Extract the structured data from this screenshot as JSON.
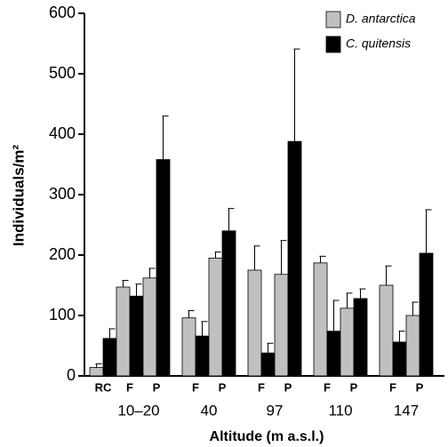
{
  "chart_data": {
    "type": "bar",
    "y_label": "Individuals/m²",
    "x_label": "Altitude (m a.s.l.)",
    "categories": [
      "RC",
      "F",
      "P",
      "F",
      "P",
      "F",
      "P",
      "F",
      "P",
      "F",
      "P"
    ],
    "groups": [
      {
        "label": "10–20",
        "categories": [
          "RC",
          "F",
          "P"
        ]
      },
      {
        "label": "40",
        "categories": [
          "F",
          "P"
        ]
      },
      {
        "label": "97",
        "categories": [
          "F",
          "P"
        ]
      },
      {
        "label": "110",
        "categories": [
          "F",
          "P"
        ]
      },
      {
        "label": "147",
        "categories": [
          "F",
          "P"
        ]
      }
    ],
    "series": [
      {
        "name": "D. antarctica",
        "color": "#c0c0c0",
        "values": [
          14,
          147,
          162,
          96,
          195,
          175,
          168,
          187,
          112,
          150,
          100
        ],
        "errors": [
          6,
          11,
          16,
          12,
          10,
          40,
          56,
          11,
          25,
          32,
          22
        ]
      },
      {
        "name": "C. quitensis",
        "color": "#000000",
        "values": [
          62,
          132,
          358,
          66,
          240,
          38,
          388,
          74,
          128,
          56,
          203
        ],
        "errors": [
          16,
          20,
          72,
          24,
          37,
          16,
          153,
          51,
          16,
          18,
          72
        ]
      }
    ],
    "ylim": [
      0,
      600
    ],
    "yticks": [
      0,
      100,
      200,
      300,
      400,
      500,
      600
    ],
    "legend": "upper right"
  }
}
